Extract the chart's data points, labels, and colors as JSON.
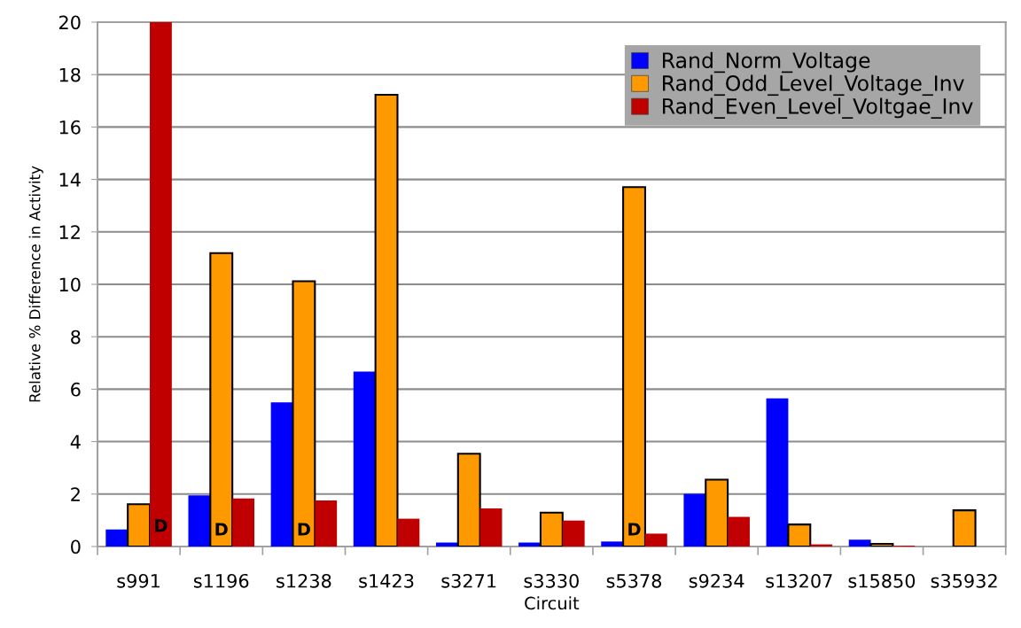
{
  "chart_data": {
    "type": "bar",
    "xlabel": "Circuit",
    "ylabel": "Relative % Difference in Activity",
    "categories": [
      "s991",
      "s1196",
      "s1238",
      "s1423",
      "s3271",
      "s3330",
      "s5378",
      "s9234",
      "s13207",
      "s15850",
      "s35932"
    ],
    "series": [
      {
        "name": "Rand_Norm_Voltage",
        "color": "#0000ff",
        "values": [
          0.65,
          1.95,
          5.5,
          6.67,
          0.15,
          0.15,
          0.19,
          2.01,
          5.65,
          0.26,
          null
        ]
      },
      {
        "name": "Rand_Odd_Level_Voltage_Inv",
        "color": "#ff9900",
        "values": [
          1.61,
          11.19,
          10.12,
          17.23,
          3.54,
          1.29,
          13.71,
          2.55,
          0.84,
          0.1,
          1.38
        ]
      },
      {
        "name": "Rand_Even_Level_Voltgae_Inv",
        "color": "#c00000",
        "values": [
          20,
          1.83,
          1.76,
          1.06,
          1.45,
          0.99,
          0.49,
          1.13,
          0.08,
          0.03,
          null
        ]
      }
    ],
    "ylim": [
      0,
      20
    ],
    "yticks": [
      0,
      2,
      4,
      6,
      8,
      10,
      12,
      14,
      16,
      18,
      20
    ],
    "grid": "y",
    "legend": "top right",
    "annotations": [
      "D",
      "D",
      "D",
      "D"
    ]
  }
}
